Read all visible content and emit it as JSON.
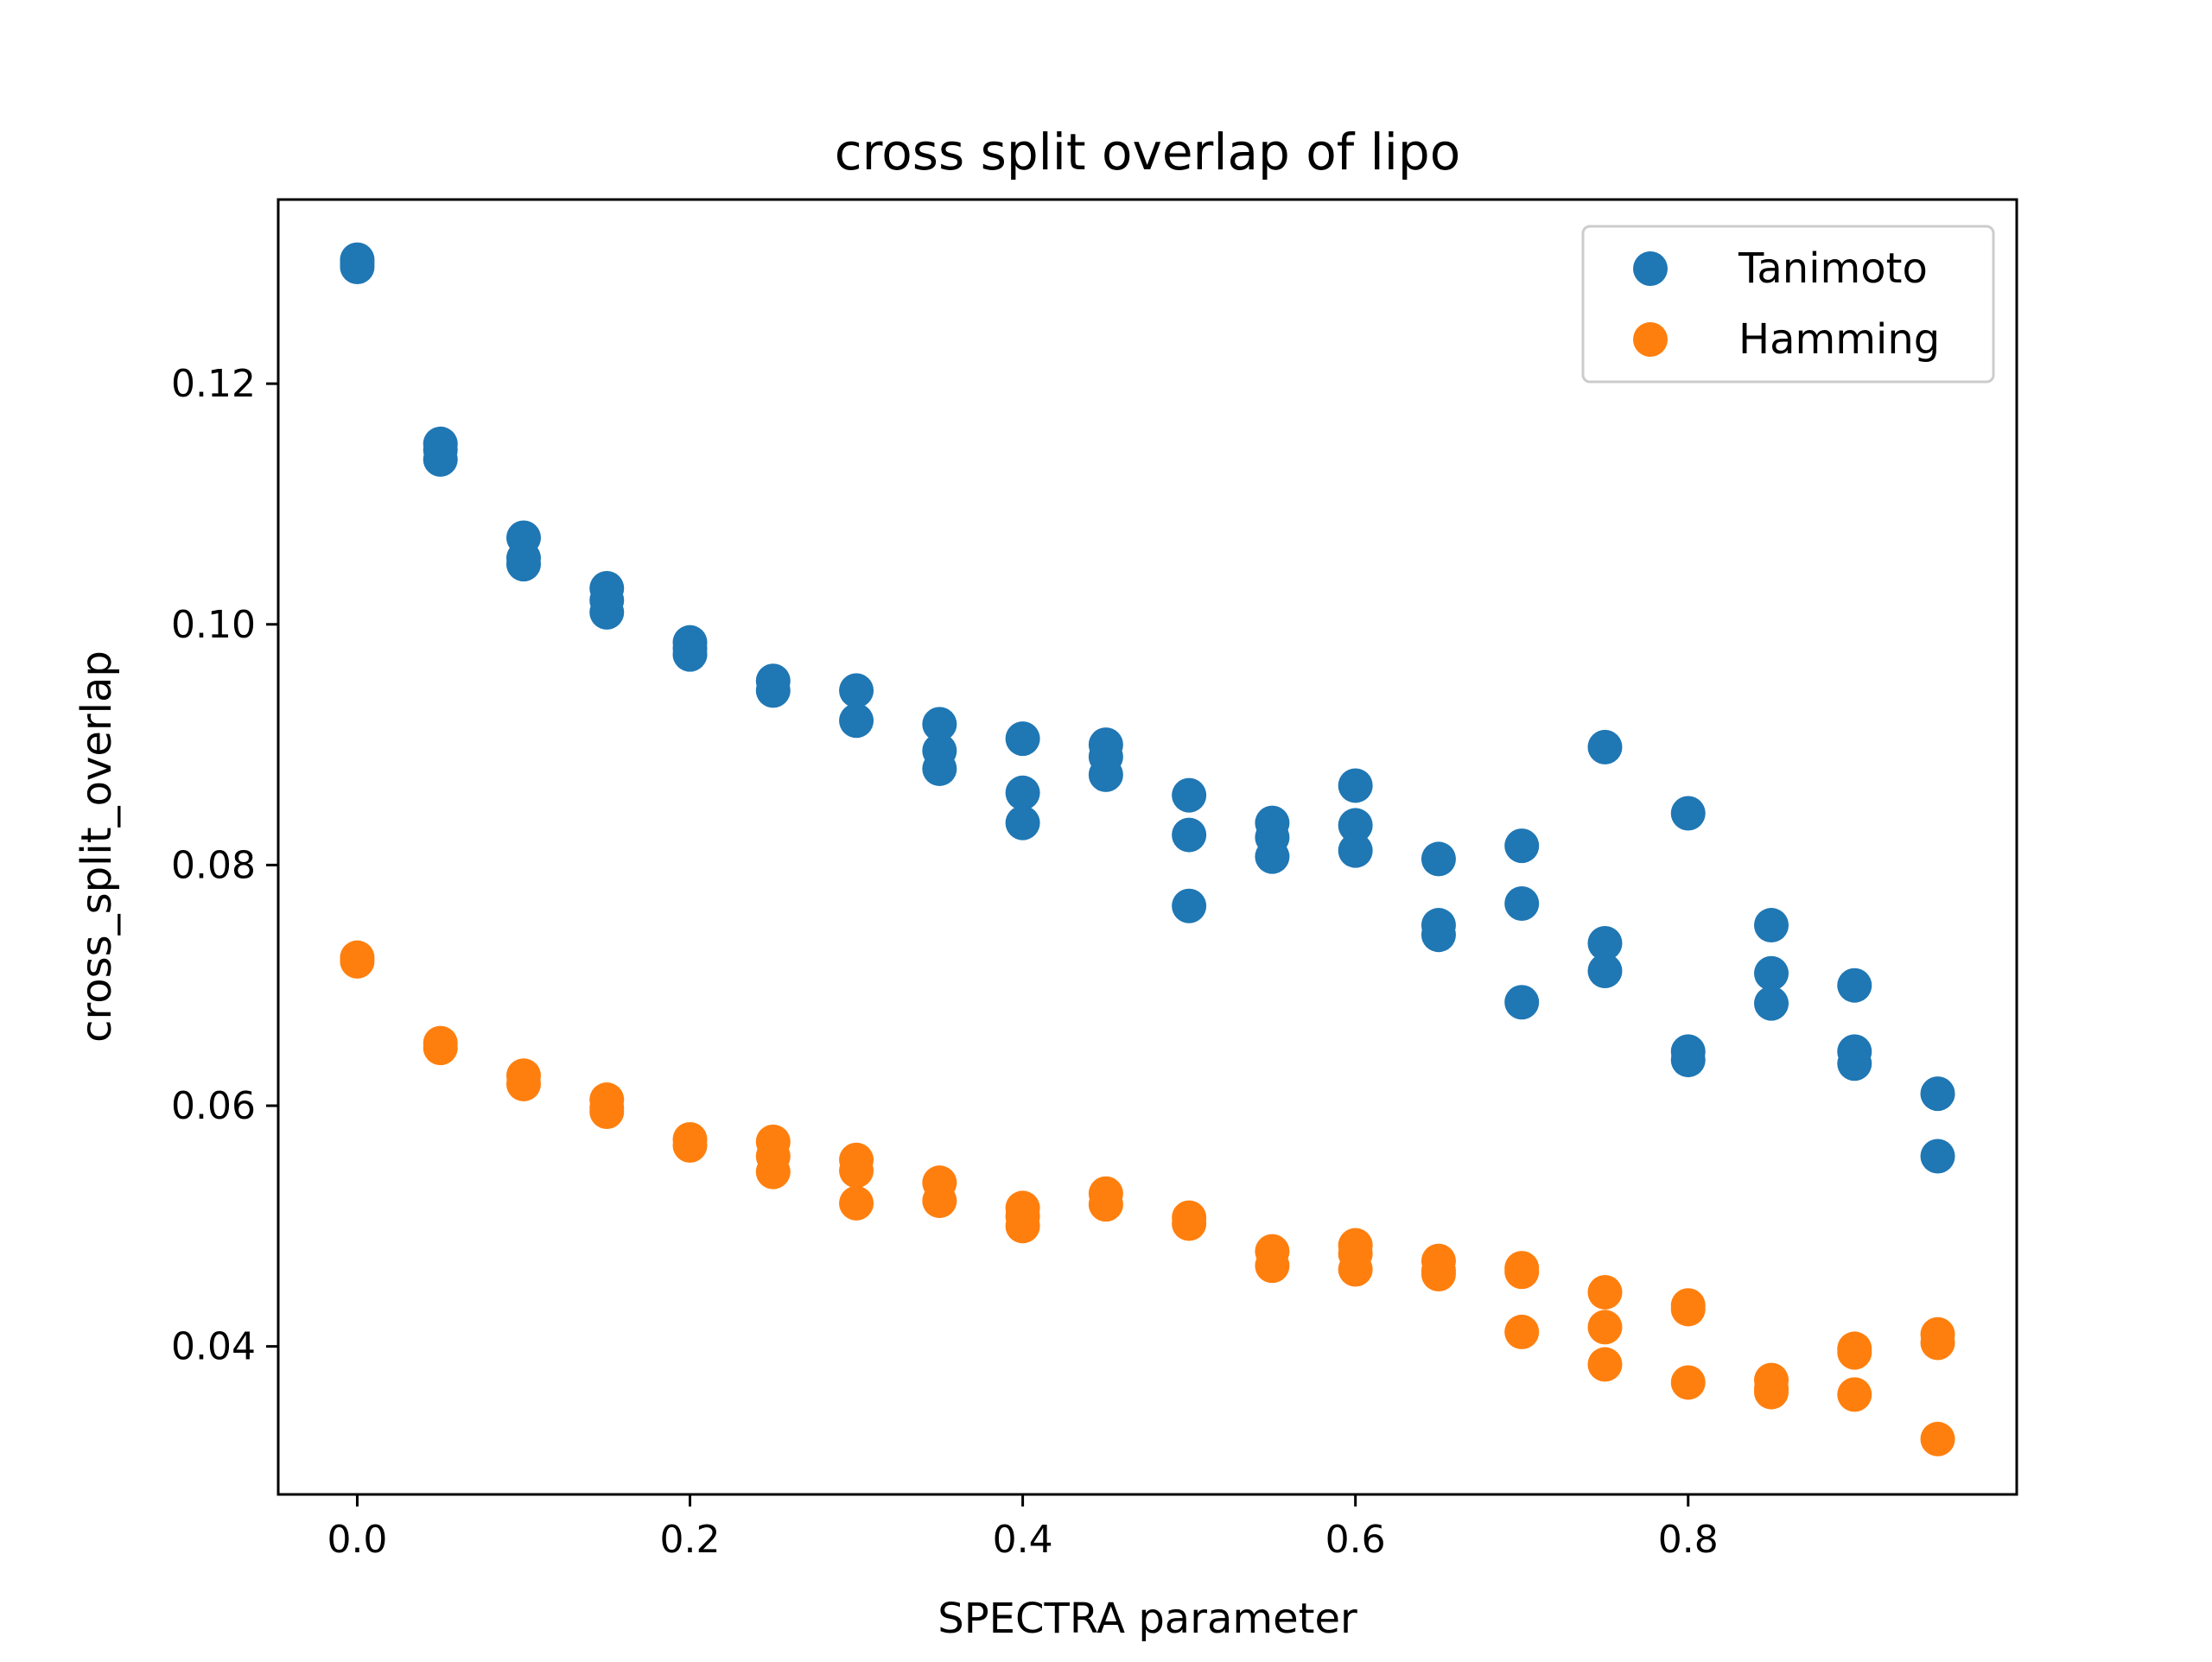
{
  "chart_data": {
    "type": "scatter",
    "title": "cross split overlap of lipo",
    "xlabel": "SPECTRA parameter",
    "ylabel": "cross_split_overlap",
    "xlim": [
      -0.0475,
      0.9975
    ],
    "ylim": [
      0.0277,
      0.1353
    ],
    "xticks": [
      0.0,
      0.2,
      0.4,
      0.6,
      0.8
    ],
    "xtick_labels": [
      "0.0",
      "0.2",
      "0.4",
      "0.6",
      "0.8"
    ],
    "yticks": [
      0.04,
      0.06,
      0.08,
      0.1,
      0.12
    ],
    "ytick_labels": [
      "0.04",
      "0.06",
      "0.08",
      "0.10",
      "0.12"
    ],
    "grid": false,
    "legend_position": "top-right",
    "series": [
      {
        "name": "Tanimoto",
        "color": "#1f77b4",
        "points": [
          [
            0.0,
            0.1303
          ],
          [
            0.0,
            0.13
          ],
          [
            0.0,
            0.1297
          ],
          [
            0.05,
            0.115
          ],
          [
            0.05,
            0.1145
          ],
          [
            0.05,
            0.1137
          ],
          [
            0.1,
            0.1072
          ],
          [
            0.1,
            0.1055
          ],
          [
            0.1,
            0.105
          ],
          [
            0.15,
            0.103
          ],
          [
            0.15,
            0.102
          ],
          [
            0.15,
            0.101
          ],
          [
            0.2,
            0.0985
          ],
          [
            0.2,
            0.098
          ],
          [
            0.2,
            0.0975
          ],
          [
            0.25,
            0.0953
          ],
          [
            0.25,
            0.0945
          ],
          [
            0.3,
            0.0945
          ],
          [
            0.3,
            0.092
          ],
          [
            0.35,
            0.0917
          ],
          [
            0.35,
            0.0895
          ],
          [
            0.35,
            0.088
          ],
          [
            0.4,
            0.0905
          ],
          [
            0.4,
            0.086
          ],
          [
            0.4,
            0.0835
          ],
          [
            0.45,
            0.09
          ],
          [
            0.45,
            0.089
          ],
          [
            0.45,
            0.0875
          ],
          [
            0.5,
            0.0858
          ],
          [
            0.5,
            0.0825
          ],
          [
            0.5,
            0.0766
          ],
          [
            0.55,
            0.0835
          ],
          [
            0.55,
            0.0823
          ],
          [
            0.55,
            0.0807
          ],
          [
            0.6,
            0.0866
          ],
          [
            0.6,
            0.0833
          ],
          [
            0.6,
            0.0812
          ],
          [
            0.65,
            0.0805
          ],
          [
            0.65,
            0.075
          ],
          [
            0.65,
            0.0742
          ],
          [
            0.7,
            0.0816
          ],
          [
            0.7,
            0.0768
          ],
          [
            0.7,
            0.0686
          ],
          [
            0.75,
            0.0898
          ],
          [
            0.75,
            0.0735
          ],
          [
            0.75,
            0.0712
          ],
          [
            0.8,
            0.0843
          ],
          [
            0.8,
            0.0645
          ],
          [
            0.8,
            0.0638
          ],
          [
            0.85,
            0.075
          ],
          [
            0.85,
            0.071
          ],
          [
            0.85,
            0.0685
          ],
          [
            0.9,
            0.07
          ],
          [
            0.9,
            0.0645
          ],
          [
            0.9,
            0.0635
          ],
          [
            0.95,
            0.061
          ],
          [
            0.95,
            0.0558
          ]
        ]
      },
      {
        "name": "Hamming",
        "color": "#ff7f0e",
        "points": [
          [
            0.0,
            0.0723
          ],
          [
            0.0,
            0.072
          ],
          [
            0.05,
            0.0652
          ],
          [
            0.05,
            0.0648
          ],
          [
            0.1,
            0.0625
          ],
          [
            0.1,
            0.0618
          ],
          [
            0.15,
            0.0605
          ],
          [
            0.15,
            0.0598
          ],
          [
            0.15,
            0.0595
          ],
          [
            0.2,
            0.0572
          ],
          [
            0.2,
            0.0567
          ],
          [
            0.25,
            0.057
          ],
          [
            0.25,
            0.0558
          ],
          [
            0.25,
            0.0545
          ],
          [
            0.3,
            0.0555
          ],
          [
            0.3,
            0.0546
          ],
          [
            0.3,
            0.0519
          ],
          [
            0.35,
            0.0536
          ],
          [
            0.35,
            0.0521
          ],
          [
            0.4,
            0.0515
          ],
          [
            0.4,
            0.0508
          ],
          [
            0.4,
            0.05
          ],
          [
            0.45,
            0.0527
          ],
          [
            0.45,
            0.0518
          ],
          [
            0.5,
            0.0507
          ],
          [
            0.5,
            0.0502
          ],
          [
            0.55,
            0.0479
          ],
          [
            0.55,
            0.0467
          ],
          [
            0.6,
            0.0484
          ],
          [
            0.6,
            0.0477
          ],
          [
            0.6,
            0.0464
          ],
          [
            0.65,
            0.0471
          ],
          [
            0.65,
            0.0463
          ],
          [
            0.65,
            0.046
          ],
          [
            0.7,
            0.0465
          ],
          [
            0.7,
            0.0462
          ],
          [
            0.7,
            0.0412
          ],
          [
            0.75,
            0.0445
          ],
          [
            0.75,
            0.0416
          ],
          [
            0.75,
            0.0385
          ],
          [
            0.8,
            0.0434
          ],
          [
            0.8,
            0.0431
          ],
          [
            0.8,
            0.037
          ],
          [
            0.85,
            0.0372
          ],
          [
            0.85,
            0.0365
          ],
          [
            0.85,
            0.0362
          ],
          [
            0.9,
            0.0398
          ],
          [
            0.9,
            0.0395
          ],
          [
            0.9,
            0.036
          ],
          [
            0.95,
            0.041
          ],
          [
            0.95,
            0.0403
          ],
          [
            0.95,
            0.0323
          ]
        ]
      }
    ]
  }
}
